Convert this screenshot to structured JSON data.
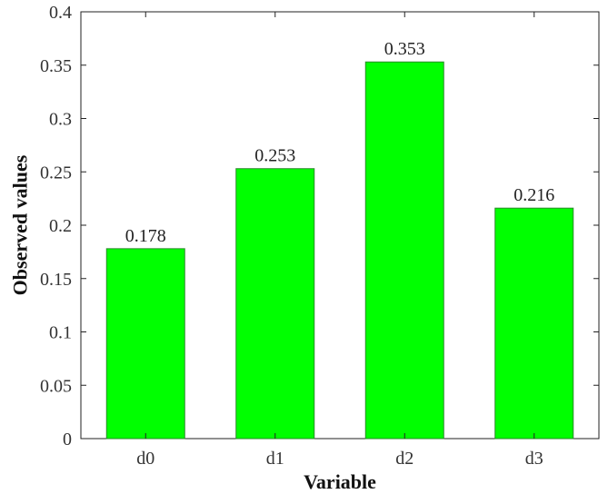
{
  "chart_data": {
    "type": "bar",
    "categories": [
      "d0",
      "d1",
      "d2",
      "d3"
    ],
    "values": [
      0.178,
      0.253,
      0.353,
      0.216
    ],
    "data_labels": [
      "0.178",
      "0.253",
      "0.353",
      "0.216"
    ],
    "xlabel": "Variable",
    "ylabel": "Observed values",
    "ylim": [
      0,
      0.4
    ],
    "yticks": [
      0,
      0.05,
      0.1,
      0.15,
      0.2,
      0.25,
      0.3,
      0.35,
      0.4
    ],
    "ytick_labels": [
      "0",
      "0.05",
      "0.1",
      "0.15",
      "0.2",
      "0.25",
      "0.3",
      "0.35",
      "0.4"
    ],
    "grid": false,
    "colors": {
      "bar_fill": "#00ff00",
      "bar_edge": "#2a8a2a",
      "axis": "#222222"
    }
  }
}
